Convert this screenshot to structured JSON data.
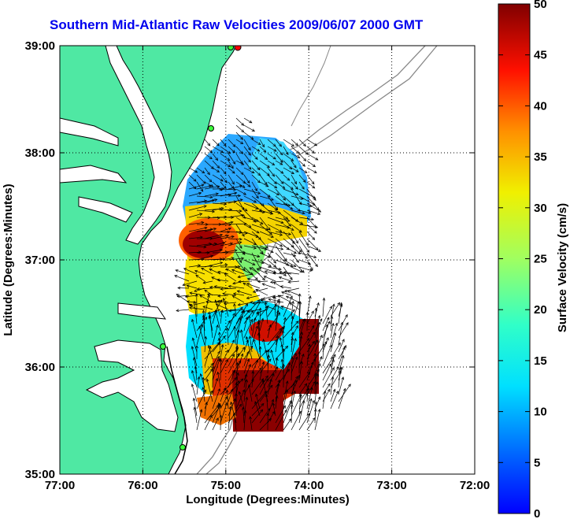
{
  "title": "Southern Mid-Atlantic Raw Velocities 2009/06/07 2000 GMT",
  "x_axis": {
    "label": "Longitude (Degrees:Minutes)",
    "ticks": [
      "77:00",
      "76:00",
      "75:00",
      "74:00",
      "73:00",
      "72:00"
    ],
    "range": [
      -77,
      -72
    ]
  },
  "y_axis": {
    "label": "Latitude (Degrees:Minutes)",
    "ticks": [
      "39:00",
      "38:00",
      "37:00",
      "36:00",
      "35:00"
    ],
    "range": [
      35,
      39
    ]
  },
  "colorbar": {
    "label": "Surface Velocity (cm/s)",
    "ticks": [
      "50",
      "45",
      "40",
      "35",
      "30",
      "25",
      "20",
      "15",
      "10",
      "5",
      "0"
    ],
    "range": [
      0,
      50
    ],
    "colormap": "jet"
  },
  "colors": {
    "land": "#4fe8a3",
    "coast": "#000000",
    "bathymetry": "#888888",
    "title": "#0000ee"
  },
  "grid": "dotted"
}
